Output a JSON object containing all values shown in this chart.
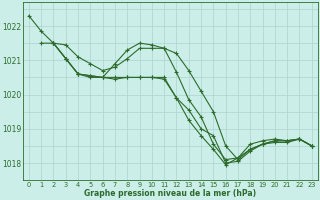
{
  "title": "Graphe pression niveau de la mer (hPa)",
  "background_color": "#cceee8",
  "grid_color": "#aad4ce",
  "line_color": "#2d6b2d",
  "xlim": [
    -0.5,
    23.5
  ],
  "ylim": [
    1017.5,
    1022.7
  ],
  "yticks": [
    1018,
    1019,
    1020,
    1021,
    1022
  ],
  "xticks": [
    0,
    1,
    2,
    3,
    4,
    5,
    6,
    7,
    8,
    9,
    10,
    11,
    12,
    13,
    14,
    15,
    16,
    17,
    18,
    19,
    20,
    21,
    22,
    23
  ],
  "lines": [
    {
      "x": [
        0,
        1,
        2,
        3,
        4,
        5,
        6,
        7,
        8,
        9,
        10,
        11,
        12,
        13,
        14,
        15,
        16,
        17,
        18,
        19,
        20,
        21,
        22,
        23
      ],
      "y": [
        1022.3,
        1021.85,
        1021.5,
        1021.45,
        1021.1,
        1020.9,
        1020.7,
        1020.8,
        1021.05,
        1021.35,
        1021.35,
        1021.35,
        1021.2,
        1020.7,
        1020.1,
        1019.5,
        1018.5,
        1018.1,
        1018.4,
        1018.55,
        1018.6,
        1018.6,
        1018.7,
        1018.5
      ],
      "marker": "+"
    },
    {
      "x": [
        1,
        2,
        3,
        4,
        5,
        6,
        7,
        8,
        9,
        10,
        11,
        12,
        13,
        14,
        15,
        16,
        17,
        18,
        19,
        20,
        21,
        22,
        23
      ],
      "y": [
        1021.5,
        1021.5,
        1021.05,
        1020.6,
        1020.5,
        1020.5,
        1020.9,
        1021.3,
        1021.5,
        1021.45,
        1021.35,
        1020.65,
        1019.85,
        1019.35,
        1018.55,
        1018.1,
        1018.15,
        1018.55,
        1018.65,
        1018.7,
        1018.65,
        1018.7,
        1018.5
      ],
      "marker": "+"
    },
    {
      "x": [
        2,
        3,
        4,
        5,
        6,
        7,
        8,
        9,
        10,
        11,
        12,
        13,
        14,
        15,
        16,
        17,
        18,
        19,
        20,
        21,
        22,
        23
      ],
      "y": [
        1021.5,
        1021.05,
        1020.6,
        1020.55,
        1020.5,
        1020.5,
        1020.5,
        1020.5,
        1020.5,
        1020.5,
        1019.9,
        1019.25,
        1018.8,
        1018.4,
        1017.95,
        1018.15,
        1018.4,
        1018.55,
        1018.65,
        1018.65,
        1018.7,
        1018.5
      ],
      "marker": "+"
    },
    {
      "x": [
        2,
        3,
        4,
        5,
        6,
        7,
        8,
        9,
        10,
        11,
        12,
        13,
        14,
        15,
        16,
        17,
        18,
        19,
        20,
        21,
        22,
        23
      ],
      "y": [
        1021.5,
        1021.05,
        1020.6,
        1020.55,
        1020.5,
        1020.45,
        1020.5,
        1020.5,
        1020.5,
        1020.45,
        1019.9,
        1019.55,
        1019.0,
        1018.8,
        1018.0,
        1018.05,
        1018.35,
        1018.55,
        1018.65,
        1018.65,
        1018.7,
        1018.5
      ],
      "marker": "+"
    }
  ],
  "xlabel_fontsize": 5.5,
  "ylabel_fontsize": 5.5,
  "tick_fontsize": 4.8,
  "linewidth": 0.8,
  "markersize": 2.5,
  "markeredgewidth": 0.8
}
